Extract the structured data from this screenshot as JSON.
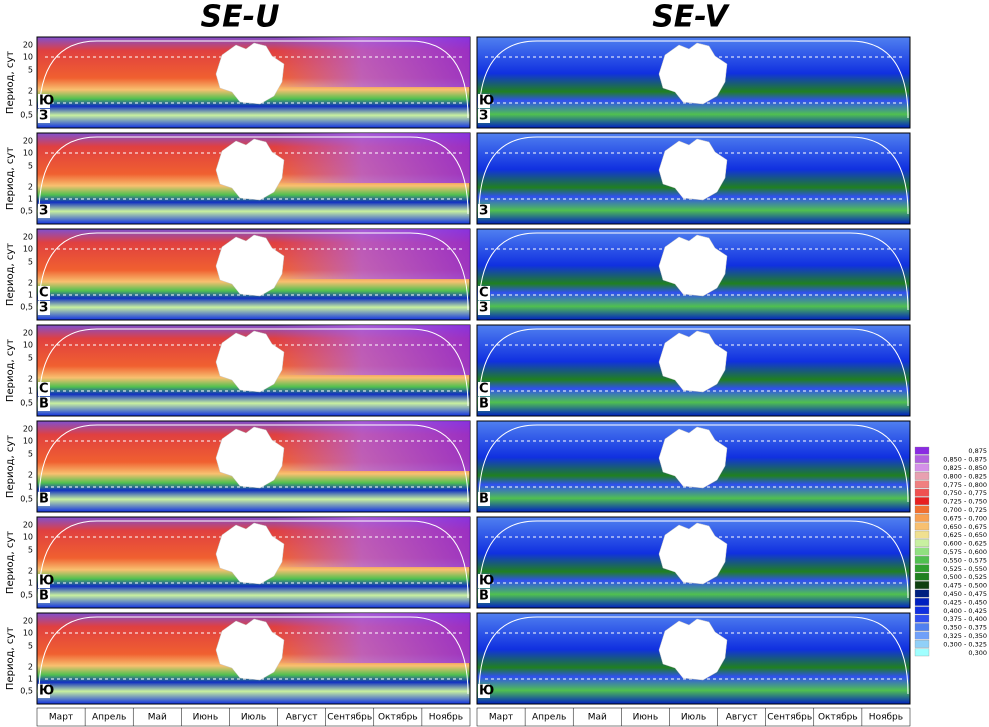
{
  "titles": [
    "SE-U",
    "SE-V"
  ],
  "y_axis_label": "Период, сут",
  "y_ticks": [
    "20",
    "10",
    "5",
    "2",
    "1",
    "0,5"
  ],
  "months": [
    "Март",
    "Апрель",
    "Май",
    "Июнь",
    "Июль",
    "Август",
    "Сентябрь",
    "Октябрь",
    "Ноябрь"
  ],
  "rows": [
    {
      "labels": [
        "Ю",
        "З"
      ]
    },
    {
      "labels": [
        "З"
      ]
    },
    {
      "labels": [
        "С",
        "З"
      ]
    },
    {
      "labels": [
        "С",
        "В"
      ]
    },
    {
      "labels": [
        "В"
      ]
    },
    {
      "labels": [
        "Ю",
        "В"
      ]
    },
    {
      "labels": [
        "Ю"
      ]
    }
  ],
  "legend": [
    {
      "label": "0,875",
      "color": "#8a2be2"
    },
    {
      "label": "0,850 - 0,875",
      "color": "#b060e0"
    },
    {
      "label": "0,825 - 0,850",
      "color": "#d490e8"
    },
    {
      "label": "0,800 - 0,825",
      "color": "#e8a0b0"
    },
    {
      "label": "0,775 - 0,800",
      "color": "#f08080"
    },
    {
      "label": "0,750 - 0,775",
      "color": "#f05050"
    },
    {
      "label": "0,725 - 0,750",
      "color": "#e82020"
    },
    {
      "label": "0,700 - 0,725",
      "color": "#f07030"
    },
    {
      "label": "0,675 - 0,700",
      "color": "#f8a050"
    },
    {
      "label": "0,650 - 0,675",
      "color": "#f8c070"
    },
    {
      "label": "0,625 - 0,650",
      "color": "#f0e090"
    },
    {
      "label": "0,600 - 0,625",
      "color": "#c8f0a0"
    },
    {
      "label": "0,575 - 0,600",
      "color": "#90e080"
    },
    {
      "label": "0,550 - 0,575",
      "color": "#50c050"
    },
    {
      "label": "0,525 - 0,550",
      "color": "#30a030"
    },
    {
      "label": "0,500 - 0,525",
      "color": "#208020"
    },
    {
      "label": "0,475 - 0,500",
      "color": "#104010"
    },
    {
      "label": "0,450 - 0,475",
      "color": "#002080"
    },
    {
      "label": "0,425 - 0,450",
      "color": "#0020c0"
    },
    {
      "label": "0,400 - 0,425",
      "color": "#1030e0"
    },
    {
      "label": "0,375 - 0,400",
      "color": "#3050f0"
    },
    {
      "label": "0,350 - 0,375",
      "color": "#5080f0"
    },
    {
      "label": "0,325 - 0,350",
      "color": "#70a0f8"
    },
    {
      "label": "0,300 - 0,325",
      "color": "#90d0f8"
    },
    {
      "label": "0,300",
      "color": "#a0ffff"
    }
  ]
}
